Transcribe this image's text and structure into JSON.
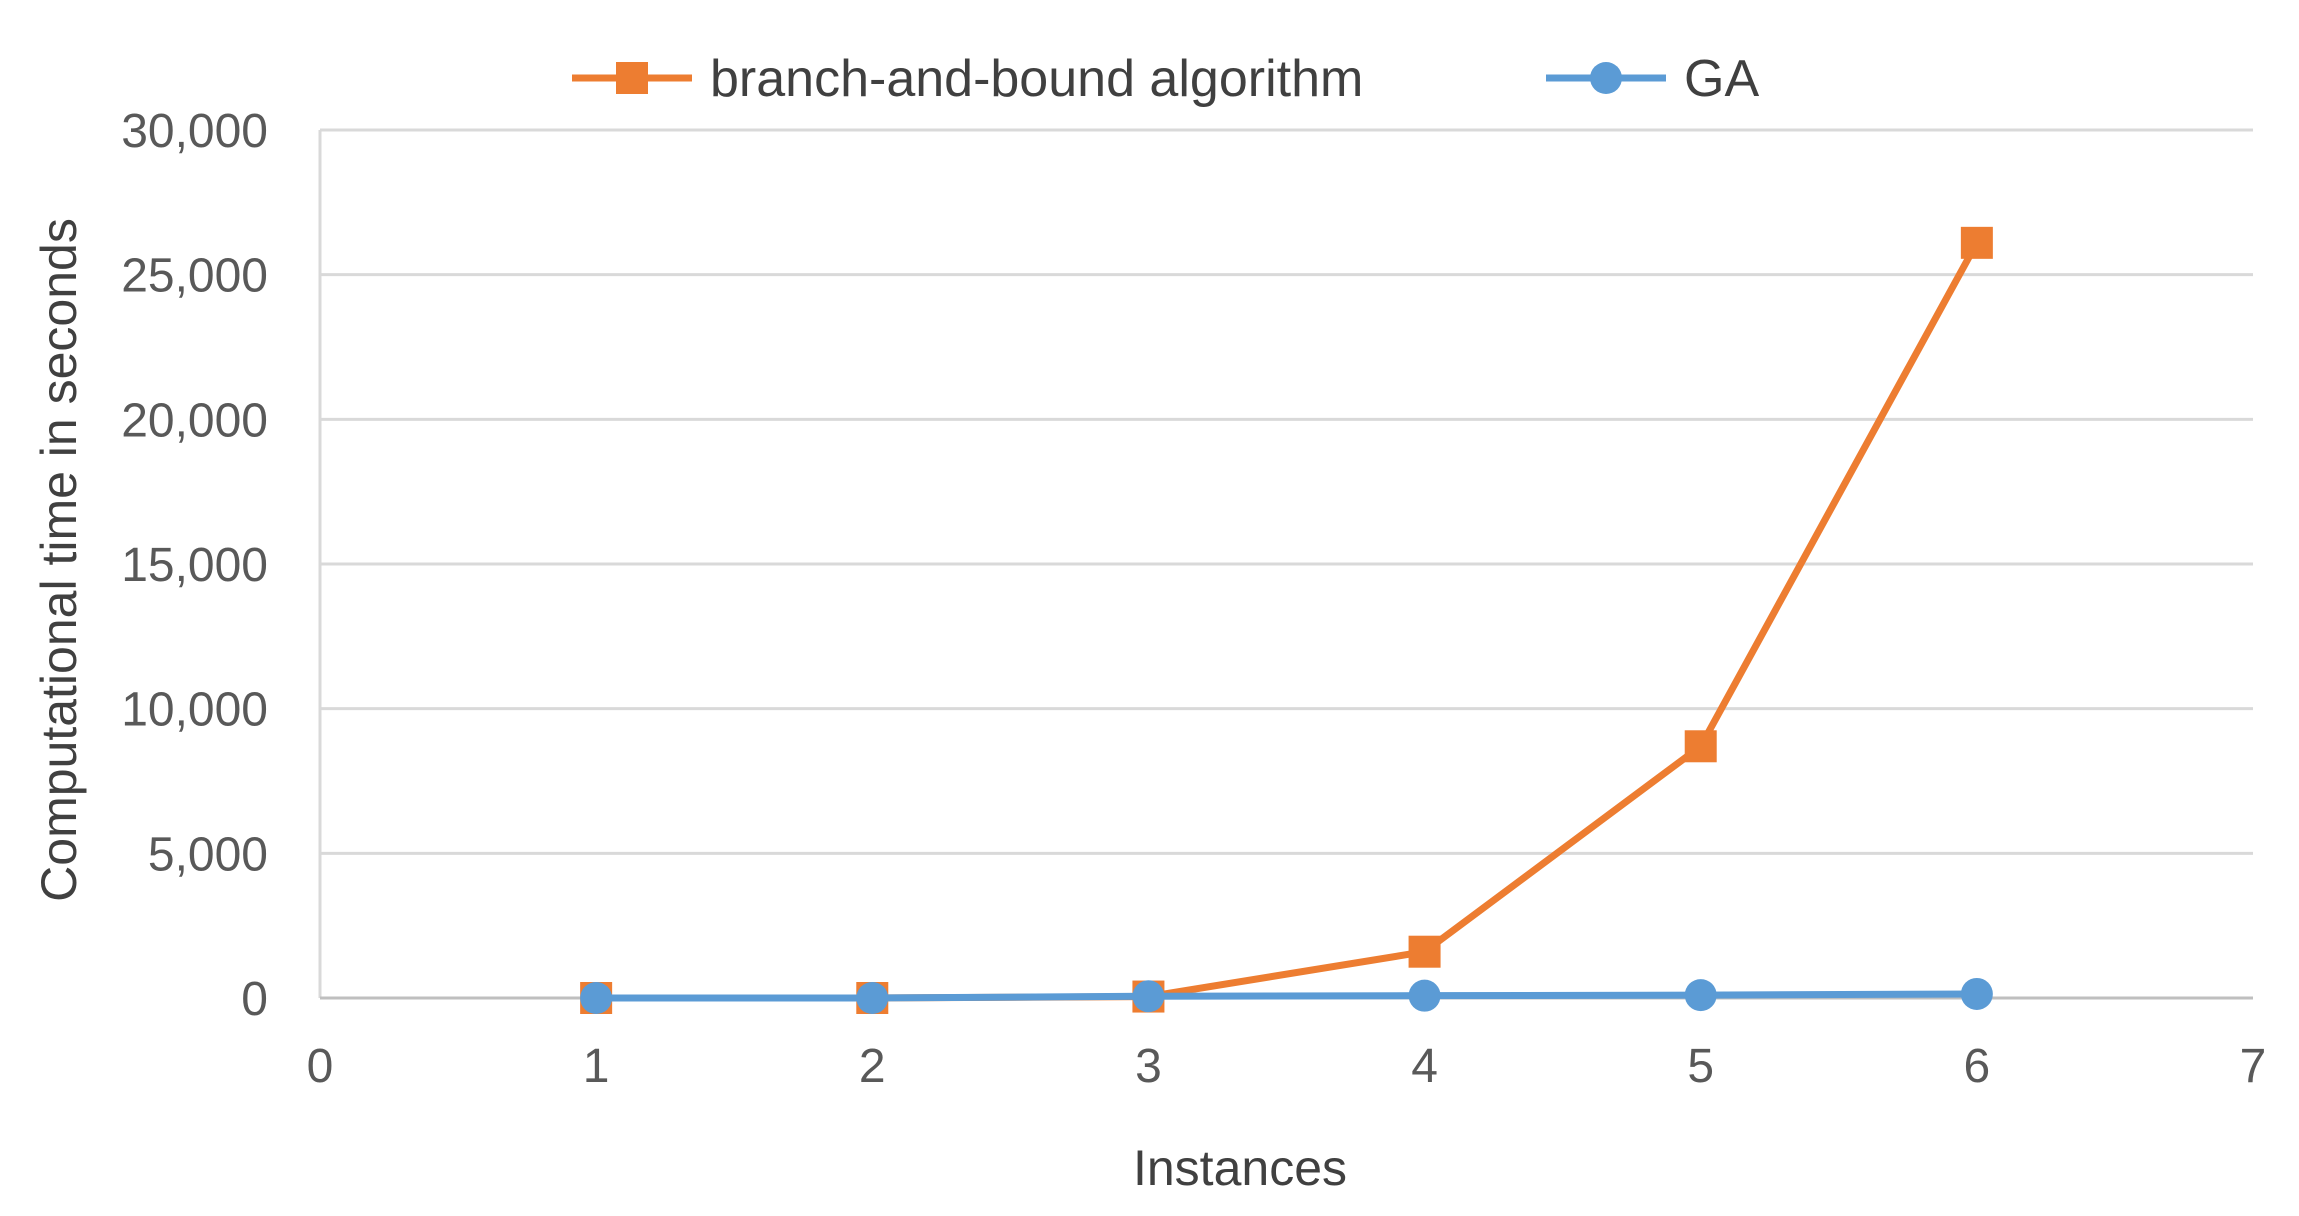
{
  "chart_data": {
    "type": "scatter",
    "title": "",
    "xlabel": "Instances",
    "ylabel": "Computational time in seconds",
    "xlim": [
      0,
      7
    ],
    "ylim": [
      0,
      30000
    ],
    "x_ticks": [
      "0",
      "1",
      "2",
      "3",
      "4",
      "5",
      "6",
      "7"
    ],
    "y_ticks": [
      "0",
      "5,000",
      "10,000",
      "15,000",
      "20,000",
      "25,000",
      "30,000"
    ],
    "grid": true,
    "legend_position": "top-center",
    "series": [
      {
        "name": "branch-and-bound algorithm",
        "color": "#ed7d31",
        "marker": "square",
        "x": [
          1,
          2,
          3,
          4,
          5,
          6
        ],
        "y": [
          0,
          0,
          50,
          1600,
          8700,
          26100
        ]
      },
      {
        "name": "GA",
        "color": "#5b9bd5",
        "marker": "circle",
        "x": [
          1,
          2,
          3,
          4,
          5,
          6
        ],
        "y": [
          0,
          0,
          60,
          80,
          100,
          140
        ]
      }
    ]
  }
}
